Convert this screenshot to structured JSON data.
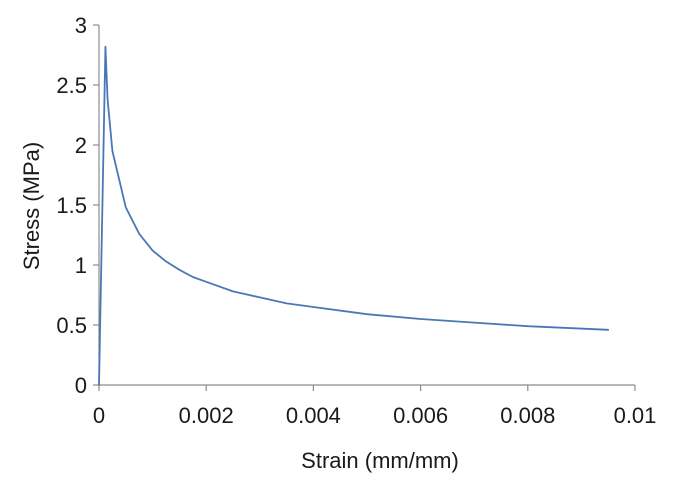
{
  "chart_data": {
    "type": "line",
    "title": "",
    "xlabel": "Strain (mm/mm)",
    "ylabel": "Stress (MPa)",
    "xlim": [
      0,
      0.01
    ],
    "ylim": [
      0,
      3
    ],
    "xticks": [
      0,
      0.002,
      0.004,
      0.006,
      0.008,
      0.01
    ],
    "xtick_labels": [
      "0",
      "0.002",
      "0.004",
      "0.006",
      "0.008",
      "0.01"
    ],
    "yticks": [
      0,
      0.5,
      1,
      1.5,
      2,
      2.5,
      3
    ],
    "ytick_labels": [
      "0",
      "0.5",
      "1",
      "1.5",
      "2",
      "2.5",
      "3"
    ],
    "grid": false,
    "colors": {
      "line": "#4a78b5",
      "axis": "#8c8c8c"
    },
    "series": [
      {
        "x": [
          0,
          0.00012,
          0.00016,
          0.00025,
          0.0005,
          0.00075,
          0.001,
          0.00125,
          0.0015,
          0.00175,
          0.002,
          0.0025,
          0.003,
          0.0035,
          0.004,
          0.005,
          0.006,
          0.007,
          0.008,
          0.0095
        ],
        "y": [
          0,
          2.82,
          2.38,
          1.95,
          1.48,
          1.26,
          1.12,
          1.03,
          0.96,
          0.9,
          0.86,
          0.78,
          0.73,
          0.68,
          0.65,
          0.59,
          0.55,
          0.52,
          0.49,
          0.46
        ]
      }
    ]
  }
}
